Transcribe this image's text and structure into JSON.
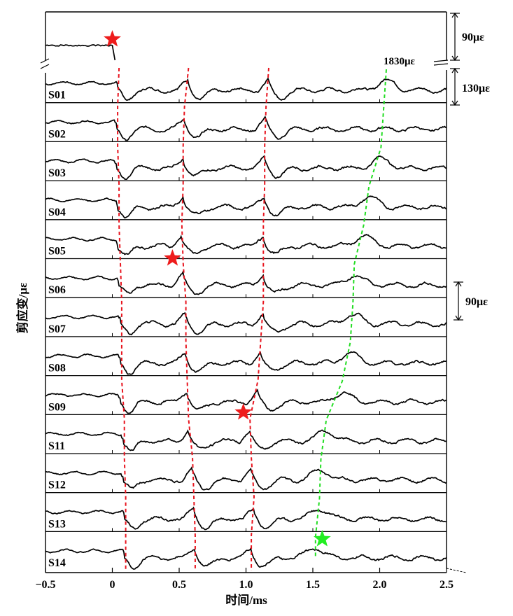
{
  "chart_data": {
    "type": "line",
    "title": "",
    "xlabel": "时间/ms",
    "ylabel": "剪应变/με",
    "xlim": [
      -0.5,
      2.5
    ],
    "x_ticks": [
      "−0.5",
      "0",
      "0.5",
      "1.0",
      "1.5",
      "2.0",
      "2.5"
    ],
    "x_tick_values": [
      -0.5,
      0,
      0.5,
      1.0,
      1.5,
      2.0,
      2.5
    ],
    "series": [
      {
        "name": "S01",
        "baseline_offset_ue": 1830,
        "arrivals_ms": [
          0.05,
          0.57,
          1.17
        ],
        "green_peak_ms": 2.05
      },
      {
        "name": "S02",
        "arrivals_ms": [
          0.04,
          0.54,
          1.15
        ]
      },
      {
        "name": "S03",
        "arrivals_ms": [
          0.04,
          0.53,
          1.14
        ],
        "green_peak_ms": 2.01
      },
      {
        "name": "S04",
        "arrivals_ms": [
          0.05,
          0.53,
          1.14
        ],
        "green_peak_ms": 1.92
      },
      {
        "name": "S05",
        "arrivals_ms": [
          0.05,
          0.52,
          1.13
        ],
        "green_peak_ms": 1.88
      },
      {
        "name": "S06",
        "arrivals_ms": [
          0.06,
          0.53,
          1.13
        ],
        "green_peak_ms": 1.81
      },
      {
        "name": "S07",
        "arrivals_ms": [
          0.07,
          0.55,
          1.13
        ],
        "green_peak_ms": 1.8
      },
      {
        "name": "S08",
        "arrivals_ms": [
          0.07,
          0.55,
          1.11
        ],
        "green_peak_ms": 1.78
      },
      {
        "name": "S09",
        "arrivals_ms": [
          0.07,
          0.56,
          1.09
        ],
        "green_peak_ms": 1.72
      },
      {
        "name": "S11",
        "arrivals_ms": [
          0.09,
          0.57,
          1.03
        ],
        "green_peak_ms": 1.6
      },
      {
        "name": "S12",
        "arrivals_ms": [
          0.09,
          0.6,
          1.04
        ],
        "green_peak_ms": 1.56
      },
      {
        "name": "S13",
        "arrivals_ms": [
          0.1,
          0.61,
          1.06
        ],
        "green_peak_ms": 1.55
      },
      {
        "name": "S14",
        "arrivals_ms": [
          0.1,
          0.62,
          1.04
        ],
        "green_peak_ms": 1.52
      }
    ],
    "source_markers_ms": [
      0.0,
      0.45,
      0.98,
      1.57
    ],
    "scale_bars": [
      {
        "label": "90με",
        "value_ue": 90
      },
      {
        "label": "130με",
        "value_ue": 130
      },
      {
        "label": "90με",
        "value_ue": 90
      }
    ],
    "break_label": "1830με",
    "colors": {
      "trace": "#000000",
      "red_dashed": "#e8141e",
      "green_dashed": "#22dd22",
      "red_star": "#ee1c1c",
      "green_star": "#22ee22"
    },
    "grid": false,
    "legend": "none"
  }
}
